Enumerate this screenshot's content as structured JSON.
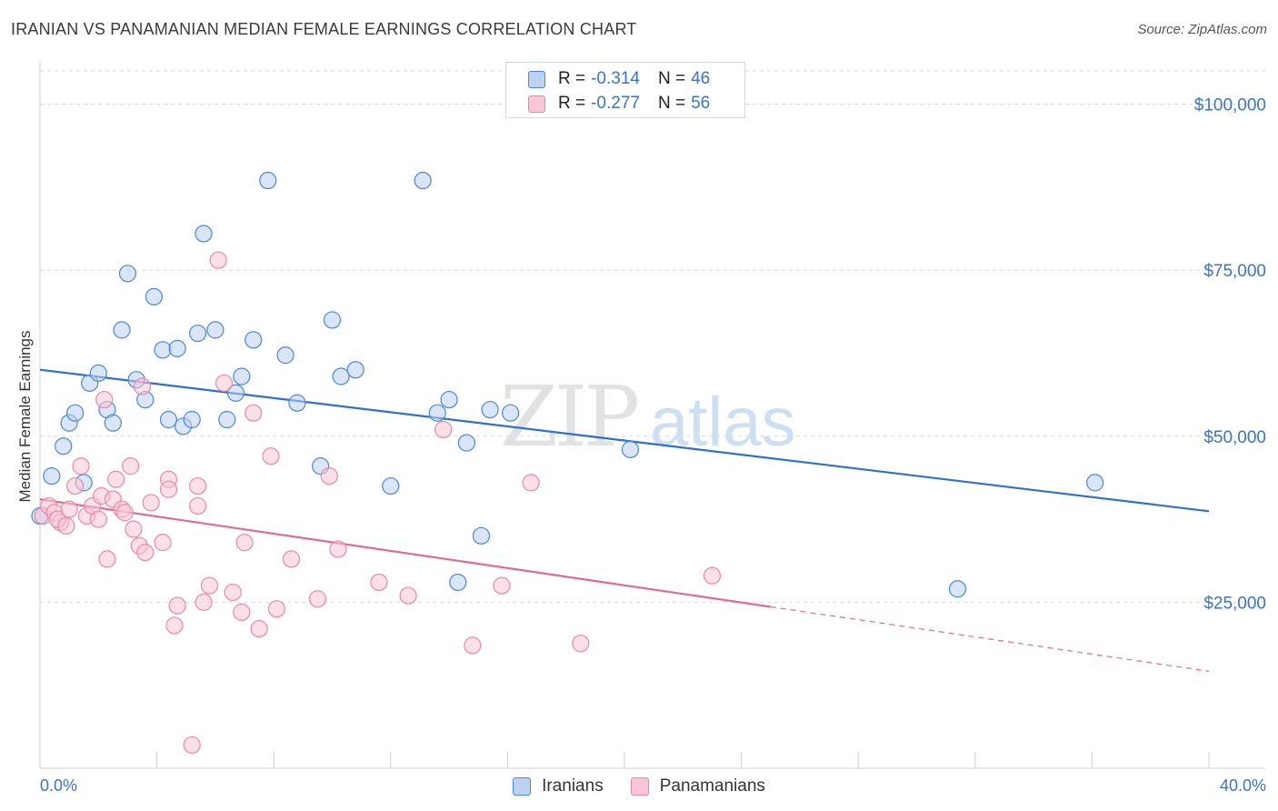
{
  "title": "IRANIAN VS PANAMANIAN MEDIAN FEMALE EARNINGS CORRELATION CHART",
  "source": "Source: ZipAtlas.com",
  "watermark": {
    "zip": "ZIP",
    "atlas": "atlas"
  },
  "legend": {
    "iranians": {
      "r_label": "R =",
      "r_value": "-0.314",
      "n_label": "N =",
      "n_value": "46"
    },
    "panamanians": {
      "r_label": "R =",
      "r_value": "-0.277",
      "n_label": "N =",
      "n_value": "56"
    }
  },
  "colors": {
    "iranians_fill": "#bcd2f0",
    "iranians_stroke": "#4d86d4",
    "iranians_line": "#2e6fd0",
    "panamanians_fill": "#f8c6d6",
    "panamanians_stroke": "#e889a8",
    "panamanians_line": "#e06a94",
    "grid": "#d9d9d9",
    "axis_text": "#3a73c8"
  },
  "chart_data": {
    "type": "scatter",
    "title": "IRANIAN VS PANAMANIAN MEDIAN FEMALE EARNINGS CORRELATION CHART",
    "xlabel": "",
    "ylabel": "Median Female Earnings",
    "xlim": [
      0,
      40
    ],
    "ylim": [
      0,
      105000
    ],
    "x_tick_labels": [
      "0.0%",
      "40.0%"
    ],
    "y_ticks": [
      25000,
      50000,
      75000,
      100000
    ],
    "y_tick_labels": [
      "$25,000",
      "$50,000",
      "$75,000",
      "$100,000"
    ],
    "series": [
      {
        "name": "Iranians",
        "points": [
          [
            0.0,
            38000
          ],
          [
            0.4,
            44000
          ],
          [
            0.8,
            48500
          ],
          [
            1.0,
            52000
          ],
          [
            1.2,
            53500
          ],
          [
            1.5,
            43000
          ],
          [
            1.7,
            58000
          ],
          [
            2.0,
            59500
          ],
          [
            2.3,
            54000
          ],
          [
            2.5,
            52000
          ],
          [
            2.8,
            66000
          ],
          [
            3.0,
            74500
          ],
          [
            3.3,
            58500
          ],
          [
            3.6,
            55500
          ],
          [
            3.9,
            71000
          ],
          [
            4.2,
            63000
          ],
          [
            4.4,
            52500
          ],
          [
            4.7,
            63200
          ],
          [
            4.9,
            51500
          ],
          [
            5.2,
            52500
          ],
          [
            5.4,
            65500
          ],
          [
            5.6,
            80500
          ],
          [
            6.0,
            66000
          ],
          [
            6.4,
            52500
          ],
          [
            6.7,
            56500
          ],
          [
            6.9,
            59000
          ],
          [
            7.3,
            64500
          ],
          [
            7.8,
            88500
          ],
          [
            8.4,
            62200
          ],
          [
            8.8,
            55000
          ],
          [
            9.6,
            45500
          ],
          [
            10.0,
            67500
          ],
          [
            10.3,
            59000
          ],
          [
            10.8,
            60000
          ],
          [
            12.0,
            42500
          ],
          [
            13.1,
            88500
          ],
          [
            13.6,
            53500
          ],
          [
            14.0,
            55500
          ],
          [
            14.3,
            28000
          ],
          [
            14.6,
            49000
          ],
          [
            15.1,
            35000
          ],
          [
            15.4,
            54000
          ],
          [
            16.1,
            53500
          ],
          [
            20.2,
            48000
          ],
          [
            31.4,
            27000
          ],
          [
            36.1,
            43000
          ]
        ]
      },
      {
        "name": "Panamanians",
        "points": [
          [
            0.1,
            38000
          ],
          [
            0.3,
            39500
          ],
          [
            0.5,
            38500
          ],
          [
            0.7,
            37000
          ],
          [
            1.2,
            42500
          ],
          [
            1.4,
            45500
          ],
          [
            1.6,
            38000
          ],
          [
            1.8,
            39500
          ],
          [
            2.0,
            37500
          ],
          [
            2.1,
            41000
          ],
          [
            2.2,
            55500
          ],
          [
            2.3,
            31500
          ],
          [
            2.5,
            40500
          ],
          [
            2.6,
            43500
          ],
          [
            2.8,
            39000
          ],
          [
            2.9,
            38500
          ],
          [
            3.1,
            45500
          ],
          [
            3.2,
            36000
          ],
          [
            3.4,
            33500
          ],
          [
            3.5,
            57500
          ],
          [
            3.6,
            32500
          ],
          [
            3.8,
            40000
          ],
          [
            4.2,
            34000
          ],
          [
            4.4,
            43500
          ],
          [
            4.4,
            42000
          ],
          [
            4.6,
            21500
          ],
          [
            4.7,
            24500
          ],
          [
            5.2,
            3500
          ],
          [
            5.4,
            42500
          ],
          [
            5.4,
            39500
          ],
          [
            5.6,
            25000
          ],
          [
            5.8,
            27500
          ],
          [
            6.1,
            76500
          ],
          [
            6.3,
            58000
          ],
          [
            6.6,
            26500
          ],
          [
            6.9,
            23500
          ],
          [
            7.0,
            34000
          ],
          [
            7.3,
            53500
          ],
          [
            7.5,
            21000
          ],
          [
            7.9,
            47000
          ],
          [
            8.1,
            24000
          ],
          [
            8.6,
            31500
          ],
          [
            9.5,
            25500
          ],
          [
            9.9,
            44000
          ],
          [
            10.2,
            33000
          ],
          [
            11.6,
            28000
          ],
          [
            12.6,
            26000
          ],
          [
            13.8,
            51000
          ],
          [
            14.8,
            18500
          ],
          [
            15.8,
            27500
          ],
          [
            16.8,
            43000
          ],
          [
            18.5,
            18800
          ],
          [
            23.0,
            29000
          ],
          [
            0.6,
            37500
          ],
          [
            1.0,
            39000
          ],
          [
            0.9,
            36500
          ]
        ]
      }
    ],
    "trendlines": [
      {
        "series": "Iranians",
        "x_start": 0,
        "y_start": 60000,
        "x_end": 40,
        "y_end": 38700,
        "dashed_from": null
      },
      {
        "series": "Panamanians",
        "x_start": 0,
        "y_start": 40500,
        "x_end": 40,
        "y_end": 14600,
        "dashed_from": 25
      }
    ]
  },
  "bottom_legend": {
    "iranians": "Iranians",
    "panamanians": "Panamanians"
  }
}
